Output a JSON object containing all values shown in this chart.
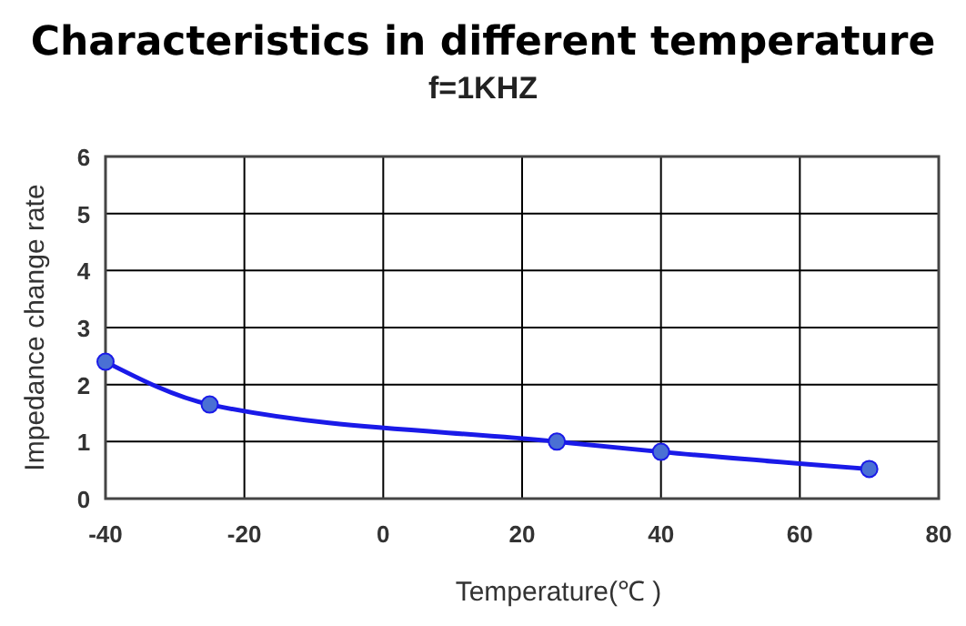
{
  "chart_data": {
    "type": "line",
    "title": "Characteristics in different temperature",
    "subtitle": "f=1KHZ",
    "xlabel": "Temperature(℃ )",
    "ylabel": "Impedance change rate",
    "x": [
      -40,
      -25,
      25,
      40,
      70
    ],
    "series": [
      {
        "color": "#1a1ae8",
        "values": [
          2.4,
          1.65,
          1.0,
          0.82,
          0.52
        ]
      }
    ],
    "xlim": [
      -40,
      80
    ],
    "xticks": [
      -40,
      -20,
      0,
      20,
      40,
      60,
      80
    ],
    "ylim": [
      0,
      6
    ],
    "yticks": [
      0,
      1,
      2,
      3,
      4,
      5,
      6
    ],
    "grid": true,
    "marker": "circle",
    "line_style": "solid"
  }
}
